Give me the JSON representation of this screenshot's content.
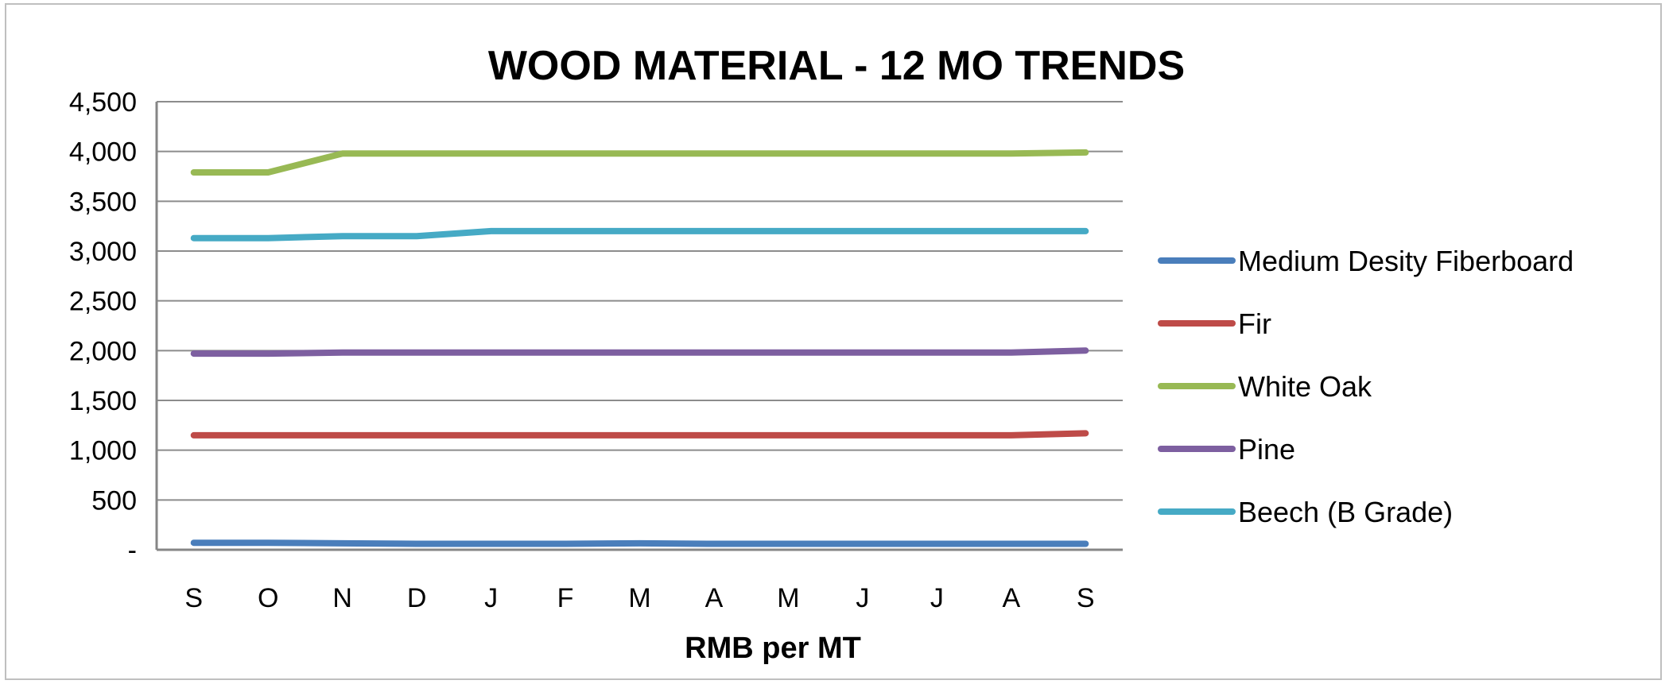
{
  "chart_data": {
    "type": "line",
    "title": "WOOD MATERIAL - 12 MO TRENDS",
    "xlabel": "RMB per MT",
    "ylabel": "",
    "categories": [
      "S",
      "O",
      "N",
      "D",
      "J",
      "F",
      "M",
      "A",
      "M",
      "J",
      "J",
      "A",
      "S"
    ],
    "yticks": [
      "-",
      "500",
      "1,000",
      "1,500",
      "2,000",
      "2,500",
      "3,000",
      "3,500",
      "4,000",
      "4,500"
    ],
    "ylim": [
      0,
      4500
    ],
    "grid": true,
    "legend_position": "right",
    "series": [
      {
        "name": "Medium Desity Fiberboard",
        "color": "#4a7ebb",
        "values": [
          70,
          70,
          65,
          60,
          60,
          60,
          65,
          60,
          60,
          60,
          60,
          60,
          60
        ]
      },
      {
        "name": "Fir",
        "color": "#be4b48",
        "values": [
          1150,
          1150,
          1150,
          1150,
          1150,
          1150,
          1150,
          1150,
          1150,
          1150,
          1150,
          1150,
          1170
        ]
      },
      {
        "name": "White Oak",
        "color": "#98b954",
        "values": [
          3790,
          3790,
          3980,
          3980,
          3980,
          3980,
          3980,
          3980,
          3980,
          3980,
          3980,
          3980,
          3990
        ]
      },
      {
        "name": "Pine",
        "color": "#7d5fa0",
        "values": [
          1970,
          1970,
          1980,
          1980,
          1980,
          1980,
          1980,
          1980,
          1980,
          1980,
          1980,
          1980,
          2000
        ]
      },
      {
        "name": "Beech (B Grade)",
        "color": "#46aac5",
        "values": [
          3130,
          3130,
          3150,
          3150,
          3200,
          3200,
          3200,
          3200,
          3200,
          3200,
          3200,
          3200,
          3200
        ]
      }
    ]
  }
}
